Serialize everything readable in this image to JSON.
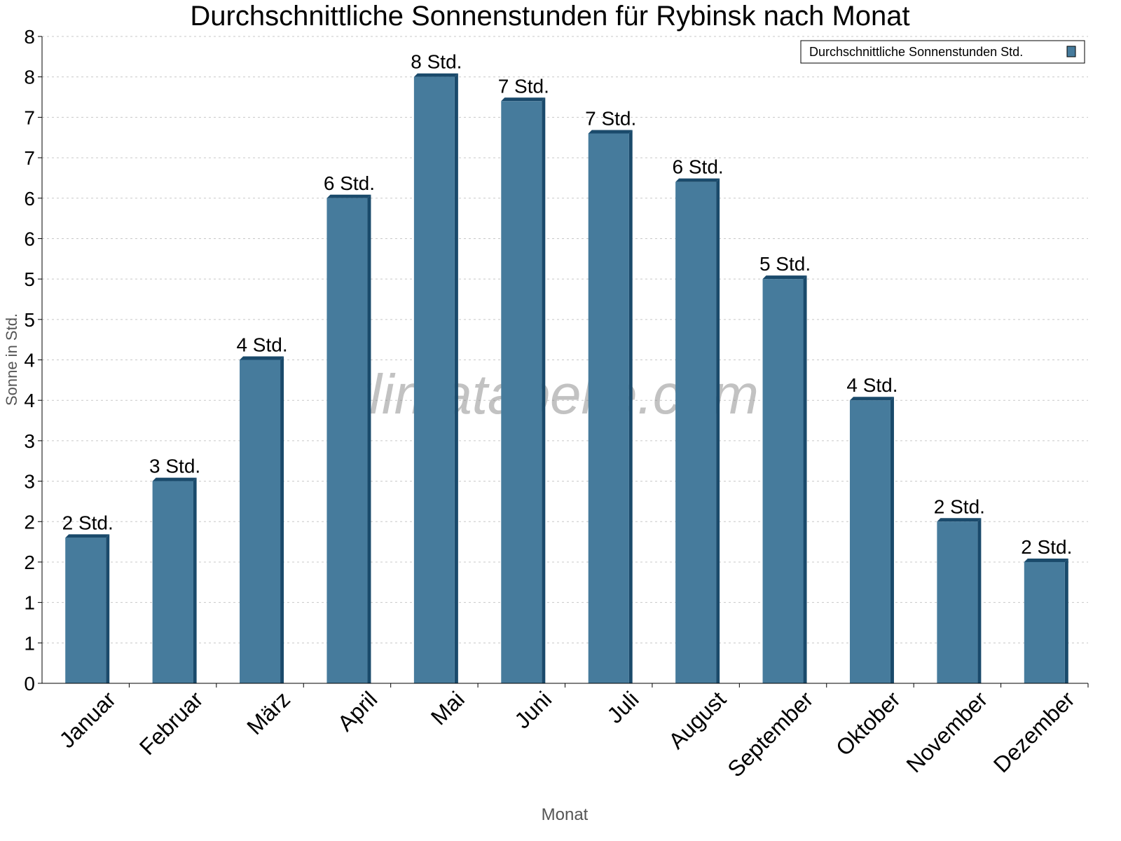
{
  "chart_data": {
    "type": "bar",
    "title": "Durchschnittliche Sonnenstunden für Rybinsk nach Monat",
    "xlabel": "Monat",
    "ylabel": "Sonne in Std.",
    "categories": [
      "Januar",
      "Februar",
      "März",
      "April",
      "Mai",
      "Juni",
      "Juli",
      "August",
      "September",
      "Oktober",
      "November",
      "Dezember"
    ],
    "series": [
      {
        "name": "Durchschnittliche Sonnenstunden Std.",
        "values": [
          1.8,
          2.5,
          4.0,
          6.0,
          7.5,
          7.2,
          6.8,
          6.2,
          5.0,
          3.5,
          2.0,
          1.5
        ]
      }
    ],
    "data_labels": [
      "2 Std.",
      "3 Std.",
      "4 Std.",
      "6 Std.",
      "8 Std.",
      "7 Std.",
      "7 Std.",
      "6 Std.",
      "5 Std.",
      "4 Std.",
      "2 Std.",
      "2 Std."
    ],
    "ylim": [
      0,
      8
    ],
    "yticks": [
      0,
      0.5,
      1,
      1.5,
      2,
      2.5,
      3,
      3.5,
      4,
      4.5,
      5,
      5.5,
      6,
      6.5,
      7,
      7.5,
      8
    ],
    "ytick_labels": [
      "0",
      "1",
      "1",
      "2",
      "2",
      "3",
      "3",
      "4",
      "4",
      "5",
      "5",
      "6",
      "6",
      "7",
      "7",
      "8",
      "8"
    ],
    "grid": true,
    "legend_position": "top-right",
    "watermark": "klimatabelle.com",
    "colors": {
      "bar": "#467b9c",
      "bar_side": "#1a4a6b"
    }
  }
}
